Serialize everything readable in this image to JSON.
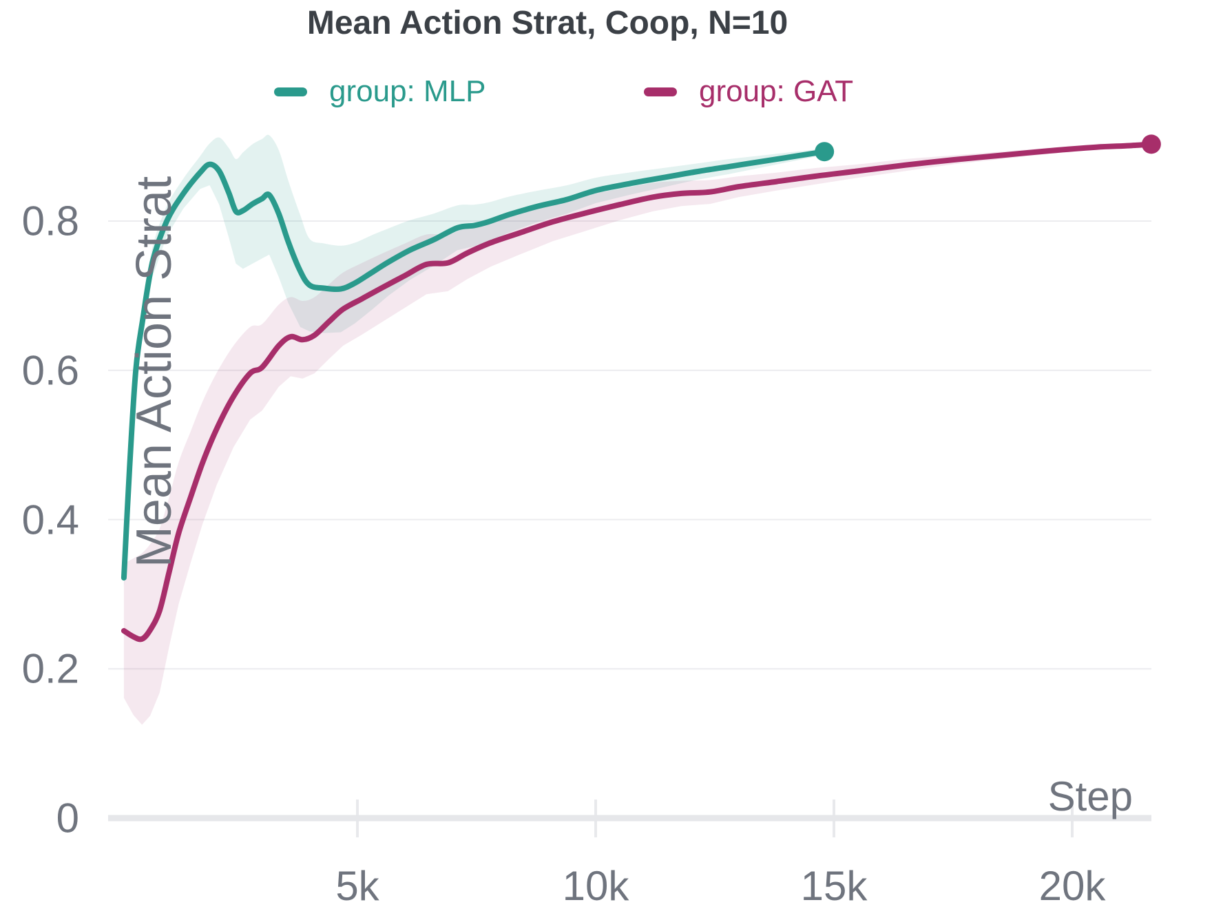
{
  "title": "Mean Action Strat, Coop, N=10",
  "legend": [
    {
      "label": "group: MLP",
      "color": "#2a9a8c"
    },
    {
      "label": "group: GAT",
      "color": "#a72e6a"
    }
  ],
  "colors": {
    "mlp_line": "#2a9a8c",
    "gat_line": "#a72e6a",
    "mlp_band": "rgba(42,154,140,0.13)",
    "gat_band": "rgba(167,46,106,0.11)",
    "title_text": "#3b4046",
    "axis_text": "#6f747e",
    "gridline": "#ececef",
    "axis_line": "#e6e7ea",
    "tick_mark": "#e8e9ec"
  },
  "chart_data": {
    "type": "line",
    "title": "Mean Action Strat, Coop, N=10",
    "xlabel": "Step",
    "ylabel": "Mean Action Strat",
    "xlim": [
      -230,
      21900
    ],
    "ylim": [
      0,
      0.95
    ],
    "grid": "horizontal",
    "legend_position": "top",
    "x_ticks": [
      {
        "value": 5000,
        "label": "5k"
      },
      {
        "value": 10000,
        "label": "10k"
      },
      {
        "value": 15000,
        "label": "15k"
      },
      {
        "value": 20000,
        "label": "20k"
      }
    ],
    "y_ticks": [
      {
        "value": 0,
        "label": "0"
      },
      {
        "value": 0.2,
        "label": "0.2"
      },
      {
        "value": 0.4,
        "label": "0.4"
      },
      {
        "value": 0.6,
        "label": "0.6"
      },
      {
        "value": 0.8,
        "label": "0.8"
      }
    ],
    "series": [
      {
        "name": "group: MLP",
        "color": "#2a9a8c",
        "band_color": "rgba(42,154,140,0.13)",
        "end_marker": true,
        "points_format": [
          "step",
          "value",
          "band_halfwidth"
        ],
        "points": [
          [
            100,
            0.322,
            0.012
          ],
          [
            220,
            0.47,
            0.015
          ],
          [
            350,
            0.6,
            0.018
          ],
          [
            500,
            0.67,
            0.02
          ],
          [
            700,
            0.745,
            0.02
          ],
          [
            1000,
            0.8,
            0.02
          ],
          [
            1350,
            0.837,
            0.02
          ],
          [
            1700,
            0.865,
            0.022
          ],
          [
            1900,
            0.876,
            0.028
          ],
          [
            2100,
            0.867,
            0.045
          ],
          [
            2300,
            0.838,
            0.06
          ],
          [
            2450,
            0.813,
            0.07
          ],
          [
            2600,
            0.814,
            0.078
          ],
          [
            2800,
            0.823,
            0.08
          ],
          [
            3000,
            0.83,
            0.08
          ],
          [
            3150,
            0.835,
            0.08
          ],
          [
            3350,
            0.81,
            0.085
          ],
          [
            3550,
            0.772,
            0.082
          ],
          [
            3800,
            0.733,
            0.075
          ],
          [
            4000,
            0.714,
            0.062
          ],
          [
            4300,
            0.71,
            0.06
          ],
          [
            4650,
            0.709,
            0.058
          ],
          [
            4950,
            0.717,
            0.054
          ],
          [
            5300,
            0.731,
            0.05
          ],
          [
            5650,
            0.745,
            0.045
          ],
          [
            6100,
            0.761,
            0.04
          ],
          [
            6600,
            0.775,
            0.035
          ],
          [
            7100,
            0.791,
            0.03
          ],
          [
            7450,
            0.794,
            0.028
          ],
          [
            7750,
            0.799,
            0.026
          ],
          [
            8200,
            0.809,
            0.024
          ],
          [
            8800,
            0.82,
            0.021
          ],
          [
            9400,
            0.829,
            0.019
          ],
          [
            10000,
            0.841,
            0.017
          ],
          [
            10700,
            0.85,
            0.015
          ],
          [
            11400,
            0.858,
            0.013
          ],
          [
            12100,
            0.866,
            0.011
          ],
          [
            12800,
            0.873,
            0.01
          ],
          [
            13500,
            0.88,
            0.008
          ],
          [
            14200,
            0.887,
            0.006
          ],
          [
            14800,
            0.893,
            0.004
          ]
        ]
      },
      {
        "name": "group: GAT",
        "color": "#a72e6a",
        "band_color": "rgba(167,46,106,0.11)",
        "end_marker": true,
        "points_format": [
          "step",
          "value",
          "band_halfwidth"
        ],
        "points": [
          [
            100,
            0.251,
            0.09
          ],
          [
            300,
            0.243,
            0.105
          ],
          [
            480,
            0.24,
            0.115
          ],
          [
            650,
            0.252,
            0.115
          ],
          [
            850,
            0.278,
            0.11
          ],
          [
            1050,
            0.33,
            0.1
          ],
          [
            1250,
            0.382,
            0.095
          ],
          [
            1500,
            0.43,
            0.088
          ],
          [
            1750,
            0.476,
            0.082
          ],
          [
            2050,
            0.522,
            0.075
          ],
          [
            2400,
            0.565,
            0.068
          ],
          [
            2750,
            0.596,
            0.062
          ],
          [
            3000,
            0.604,
            0.058
          ],
          [
            3350,
            0.633,
            0.055
          ],
          [
            3600,
            0.645,
            0.053
          ],
          [
            3850,
            0.641,
            0.052
          ],
          [
            4100,
            0.647,
            0.051
          ],
          [
            4400,
            0.665,
            0.05
          ],
          [
            4700,
            0.682,
            0.049
          ],
          [
            5100,
            0.696,
            0.048
          ],
          [
            5500,
            0.71,
            0.046
          ],
          [
            6000,
            0.727,
            0.043
          ],
          [
            6450,
            0.742,
            0.04
          ],
          [
            6900,
            0.744,
            0.038
          ],
          [
            7300,
            0.757,
            0.035
          ],
          [
            7800,
            0.771,
            0.032
          ],
          [
            8400,
            0.784,
            0.029
          ],
          [
            9100,
            0.799,
            0.026
          ],
          [
            9800,
            0.811,
            0.024
          ],
          [
            10500,
            0.822,
            0.021
          ],
          [
            11200,
            0.832,
            0.019
          ],
          [
            11800,
            0.837,
            0.017
          ],
          [
            12400,
            0.839,
            0.016
          ],
          [
            13000,
            0.846,
            0.014
          ],
          [
            13800,
            0.853,
            0.012
          ],
          [
            14600,
            0.86,
            0.011
          ],
          [
            15500,
            0.867,
            0.009
          ],
          [
            16500,
            0.875,
            0.008
          ],
          [
            17500,
            0.882,
            0.006
          ],
          [
            18500,
            0.888,
            0.005
          ],
          [
            19500,
            0.894,
            0.004
          ],
          [
            20500,
            0.899,
            0.003
          ],
          [
            21200,
            0.901,
            0.002
          ],
          [
            21660,
            0.903,
            0.002
          ]
        ]
      }
    ]
  }
}
